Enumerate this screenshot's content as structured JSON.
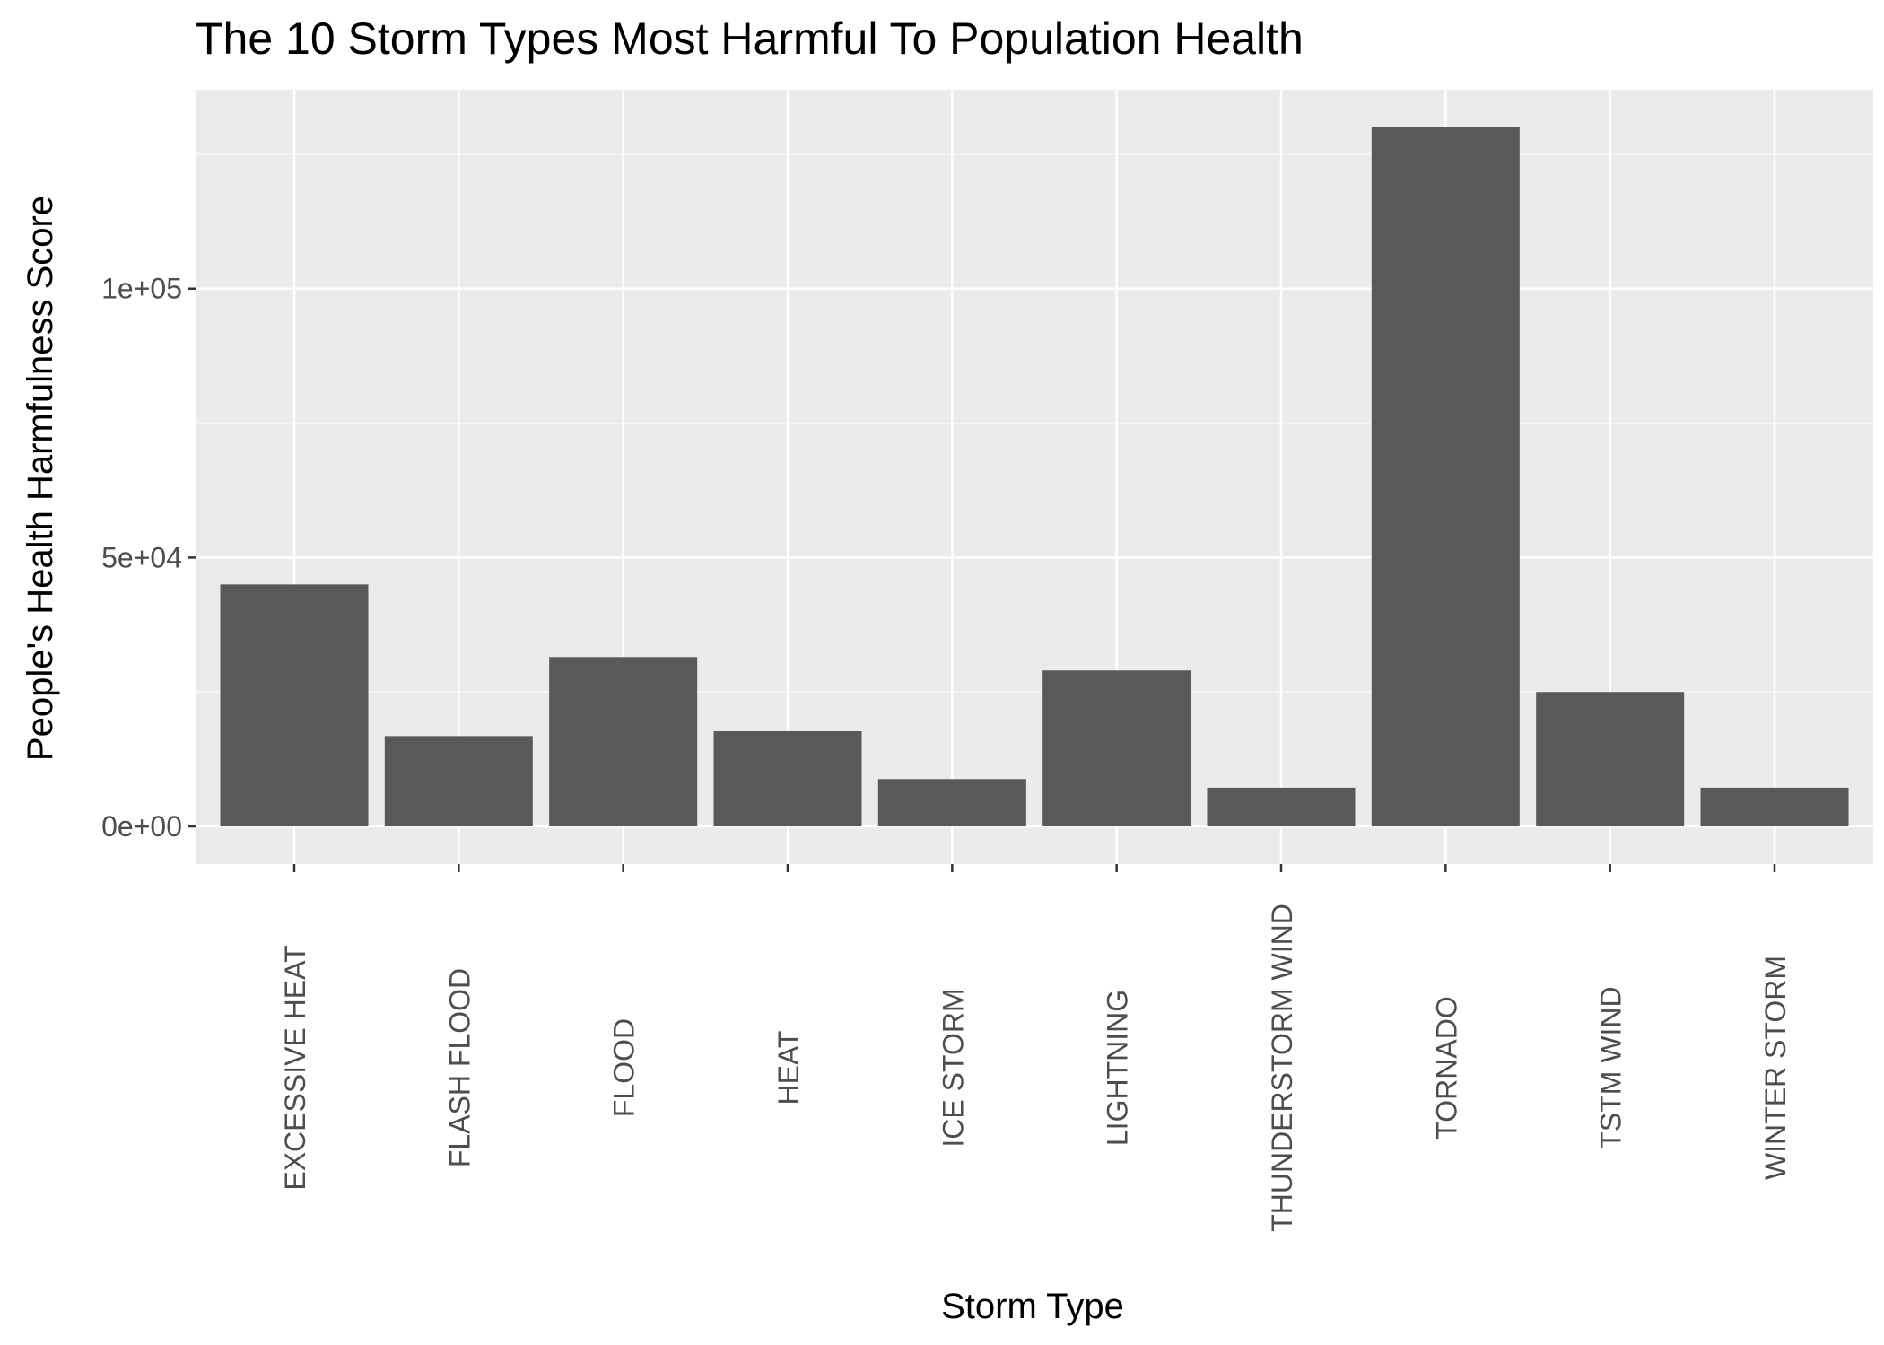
{
  "chart_data": {
    "type": "bar",
    "title": "The 10 Storm Types Most Harmful To Population Health",
    "xlabel": "Storm Type",
    "ylabel": "People's Health Harmfulness Score",
    "categories": [
      "EXCESSIVE HEAT",
      "FLASH FLOOD",
      "FLOOD",
      "HEAT",
      "ICE STORM",
      "LIGHTNING",
      "THUNDERSTORM WIND",
      "TORNADO",
      "TSTM WIND",
      "WINTER STORM"
    ],
    "values": [
      45000,
      16800,
      31500,
      17700,
      8800,
      29000,
      7200,
      130000,
      25000,
      7200
    ],
    "ylim": [
      -7000,
      137000
    ],
    "y_ticks": [
      0,
      50000,
      100000
    ],
    "y_tick_labels": [
      "0e+00",
      "5e+04",
      "1e+05"
    ],
    "grid": true,
    "legend": "none",
    "colors": {
      "bar": "#595959",
      "panel_background": "#ebebeb",
      "grid_major": "#ffffff",
      "grid_minor": "#f5f5f5",
      "tick_mark": "#333333",
      "tick_label": "#4d4d4d",
      "text": "#000000"
    }
  }
}
